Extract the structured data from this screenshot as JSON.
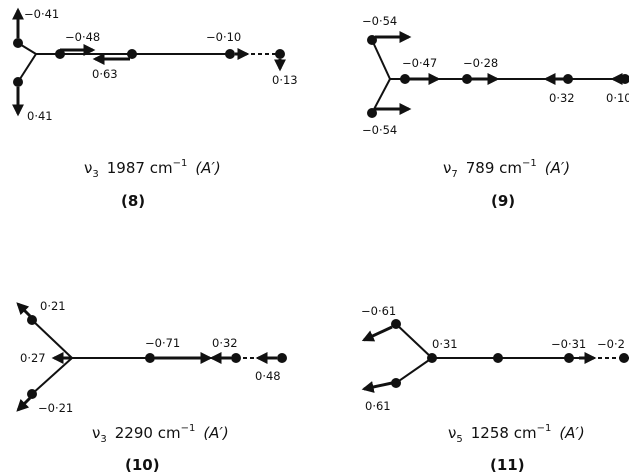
{
  "panels": [
    {
      "id": "8",
      "caption": {
        "mode": "ν",
        "sub": "3",
        "freq": "1987 cm",
        "exp": "−1",
        "sym": "(A′)"
      },
      "number": "(8)",
      "labels": [
        "−0·41",
        "−0·48",
        "−0·10",
        "0·63",
        "0·13",
        "0·41"
      ]
    },
    {
      "id": "9",
      "caption": {
        "mode": "ν",
        "sub": "7",
        "freq": "789 cm",
        "exp": "−1",
        "sym": "(A′)"
      },
      "number": "(9)",
      "labels": [
        "−0·54",
        "−0·47",
        "−0·28",
        "0·32",
        "0·10",
        "−0·54"
      ]
    },
    {
      "id": "10",
      "caption": {
        "mode": "ν",
        "sub": "3",
        "freq": "2290 cm",
        "exp": "−1",
        "sym": "(A′)"
      },
      "number": "(10)",
      "labels": [
        "0·21",
        "0·27",
        "−0·71",
        "0·32",
        "0·48",
        "−0·21"
      ]
    },
    {
      "id": "11",
      "caption": {
        "mode": "ν",
        "sub": "5",
        "freq": "1258 cm",
        "exp": "−1",
        "sym": "(A′)"
      },
      "number": "(11)",
      "labels": [
        "−0·61",
        "0·31",
        "−0·31",
        "−0·2",
        "0·61"
      ]
    }
  ]
}
